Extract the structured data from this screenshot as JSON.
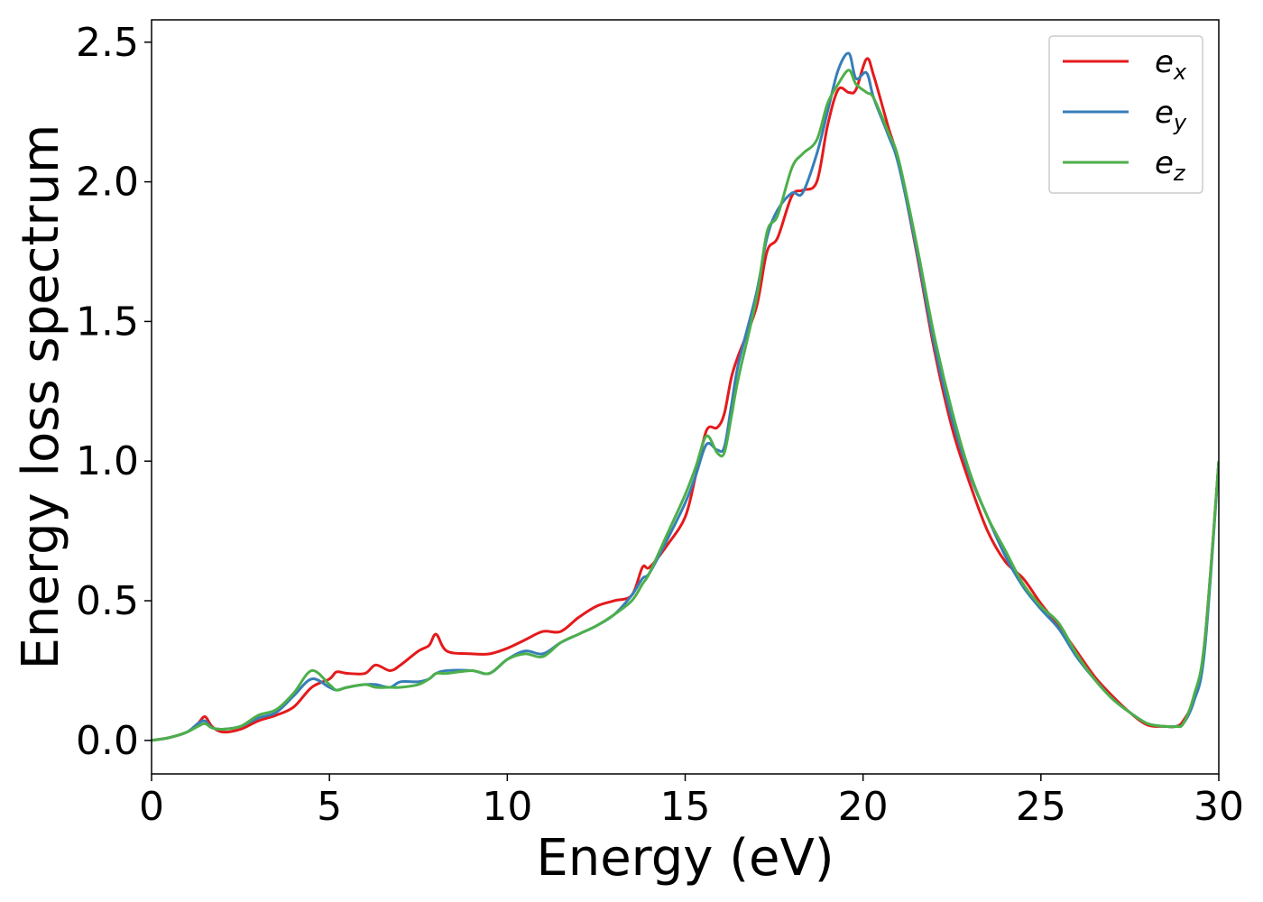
{
  "chart_data": {
    "type": "line",
    "xlabel": "Energy (eV)",
    "ylabel": "Energy loss spectrum",
    "xlim": [
      0,
      30
    ],
    "ylim": [
      -0.12,
      2.58
    ],
    "xticks": [
      0,
      5,
      10,
      15,
      20,
      25,
      30
    ],
    "xtick_labels": [
      "0",
      "5",
      "10",
      "15",
      "20",
      "25",
      "30"
    ],
    "yticks": [
      0.0,
      0.5,
      1.0,
      1.5,
      2.0,
      2.5
    ],
    "ytick_labels": [
      "0.0",
      "0.5",
      "1.0",
      "1.5",
      "2.0",
      "2.5"
    ],
    "grid": false,
    "legend_position": "top-right",
    "series": [
      {
        "name": "e",
        "subscript": "x",
        "color": "#e41a1c",
        "x": [
          0,
          0.5,
          1.0,
          1.3,
          1.5,
          1.7,
          2.0,
          2.5,
          3.0,
          3.5,
          4.0,
          4.5,
          5.0,
          5.2,
          5.5,
          6.0,
          6.3,
          6.7,
          7.0,
          7.5,
          7.8,
          8.0,
          8.3,
          9.0,
          9.5,
          10.0,
          10.5,
          11.0,
          11.5,
          12.0,
          12.5,
          13.0,
          13.5,
          13.8,
          14.0,
          14.5,
          15.0,
          15.3,
          15.6,
          15.9,
          16.1,
          16.3,
          16.5,
          17.0,
          17.3,
          17.6,
          18.0,
          18.3,
          18.7,
          19.0,
          19.3,
          19.6,
          19.8,
          20.1,
          20.3,
          20.7,
          21.0,
          21.5,
          22.0,
          22.5,
          23.0,
          23.5,
          24.0,
          24.5,
          25.0,
          25.5,
          26.0,
          26.5,
          27.0,
          27.5,
          28.0,
          28.5,
          28.8,
          29.0,
          29.3,
          29.6,
          30.0
        ],
        "y": [
          0.0,
          0.01,
          0.03,
          0.06,
          0.085,
          0.05,
          0.03,
          0.04,
          0.07,
          0.09,
          0.12,
          0.19,
          0.22,
          0.245,
          0.24,
          0.24,
          0.27,
          0.25,
          0.27,
          0.32,
          0.34,
          0.38,
          0.32,
          0.31,
          0.31,
          0.33,
          0.36,
          0.39,
          0.39,
          0.44,
          0.48,
          0.5,
          0.52,
          0.62,
          0.62,
          0.7,
          0.8,
          0.95,
          1.11,
          1.12,
          1.17,
          1.3,
          1.38,
          1.55,
          1.75,
          1.8,
          1.95,
          1.97,
          2.0,
          2.2,
          2.33,
          2.32,
          2.33,
          2.44,
          2.38,
          2.2,
          2.07,
          1.75,
          1.4,
          1.12,
          0.92,
          0.75,
          0.64,
          0.58,
          0.49,
          0.41,
          0.32,
          0.23,
          0.16,
          0.1,
          0.055,
          0.05,
          0.05,
          0.07,
          0.15,
          0.35,
          1.0
        ]
      },
      {
        "name": "e",
        "subscript": "y",
        "color": "#377eb8",
        "x": [
          0,
          0.5,
          1.0,
          1.3,
          1.5,
          1.7,
          2.0,
          2.5,
          3.0,
          3.5,
          4.0,
          4.5,
          5.0,
          5.2,
          5.5,
          6.0,
          6.3,
          6.7,
          7.0,
          7.5,
          7.8,
          8.0,
          8.3,
          9.0,
          9.5,
          10.0,
          10.5,
          11.0,
          11.5,
          12.0,
          12.5,
          13.0,
          13.5,
          13.8,
          14.0,
          14.5,
          15.0,
          15.3,
          15.6,
          15.9,
          16.1,
          16.3,
          16.5,
          17.0,
          17.3,
          17.6,
          18.0,
          18.3,
          18.7,
          19.0,
          19.3,
          19.6,
          19.8,
          20.1,
          20.3,
          20.7,
          21.0,
          21.5,
          22.0,
          22.5,
          23.0,
          23.5,
          24.0,
          24.5,
          25.0,
          25.5,
          26.0,
          26.5,
          27.0,
          27.5,
          28.0,
          28.5,
          28.8,
          29.0,
          29.3,
          29.6,
          30.0
        ],
        "y": [
          0.0,
          0.01,
          0.03,
          0.06,
          0.07,
          0.045,
          0.04,
          0.05,
          0.08,
          0.1,
          0.16,
          0.22,
          0.19,
          0.18,
          0.19,
          0.2,
          0.2,
          0.19,
          0.21,
          0.21,
          0.22,
          0.24,
          0.25,
          0.25,
          0.24,
          0.29,
          0.32,
          0.31,
          0.35,
          0.38,
          0.41,
          0.45,
          0.52,
          0.58,
          0.6,
          0.72,
          0.85,
          0.95,
          1.06,
          1.04,
          1.05,
          1.2,
          1.35,
          1.6,
          1.8,
          1.9,
          1.96,
          1.96,
          2.1,
          2.25,
          2.4,
          2.46,
          2.37,
          2.39,
          2.3,
          2.17,
          2.06,
          1.76,
          1.42,
          1.15,
          0.95,
          0.8,
          0.66,
          0.55,
          0.47,
          0.4,
          0.3,
          0.22,
          0.15,
          0.1,
          0.06,
          0.05,
          0.05,
          0.06,
          0.14,
          0.32,
          1.0
        ]
      },
      {
        "name": "e",
        "subscript": "z",
        "color": "#4daf4a",
        "x": [
          0,
          0.5,
          1.0,
          1.3,
          1.5,
          1.7,
          2.0,
          2.5,
          3.0,
          3.5,
          4.0,
          4.5,
          5.0,
          5.2,
          5.5,
          6.0,
          6.3,
          6.7,
          7.0,
          7.5,
          7.8,
          8.0,
          8.3,
          9.0,
          9.5,
          10.0,
          10.5,
          11.0,
          11.5,
          12.0,
          12.5,
          13.0,
          13.5,
          13.8,
          14.0,
          14.5,
          15.0,
          15.3,
          15.6,
          15.9,
          16.1,
          16.3,
          16.5,
          17.0,
          17.3,
          17.6,
          18.0,
          18.3,
          18.7,
          19.0,
          19.3,
          19.6,
          19.8,
          20.1,
          20.3,
          20.7,
          21.0,
          21.5,
          22.0,
          22.5,
          23.0,
          23.5,
          24.0,
          24.5,
          25.0,
          25.5,
          26.0,
          26.5,
          27.0,
          27.5,
          28.0,
          28.5,
          28.8,
          29.0,
          29.3,
          29.6,
          30.0
        ],
        "y": [
          0.0,
          0.01,
          0.03,
          0.05,
          0.06,
          0.045,
          0.04,
          0.05,
          0.09,
          0.11,
          0.17,
          0.25,
          0.2,
          0.18,
          0.19,
          0.2,
          0.19,
          0.19,
          0.19,
          0.2,
          0.22,
          0.24,
          0.24,
          0.25,
          0.24,
          0.29,
          0.31,
          0.3,
          0.35,
          0.38,
          0.41,
          0.45,
          0.5,
          0.56,
          0.6,
          0.74,
          0.88,
          0.98,
          1.09,
          1.03,
          1.03,
          1.16,
          1.3,
          1.58,
          1.82,
          1.88,
          2.05,
          2.1,
          2.15,
          2.28,
          2.35,
          2.4,
          2.35,
          2.32,
          2.3,
          2.18,
          2.08,
          1.78,
          1.45,
          1.18,
          0.96,
          0.8,
          0.68,
          0.56,
          0.48,
          0.42,
          0.31,
          0.22,
          0.15,
          0.1,
          0.06,
          0.05,
          0.05,
          0.06,
          0.16,
          0.35,
          1.0
        ]
      }
    ]
  }
}
